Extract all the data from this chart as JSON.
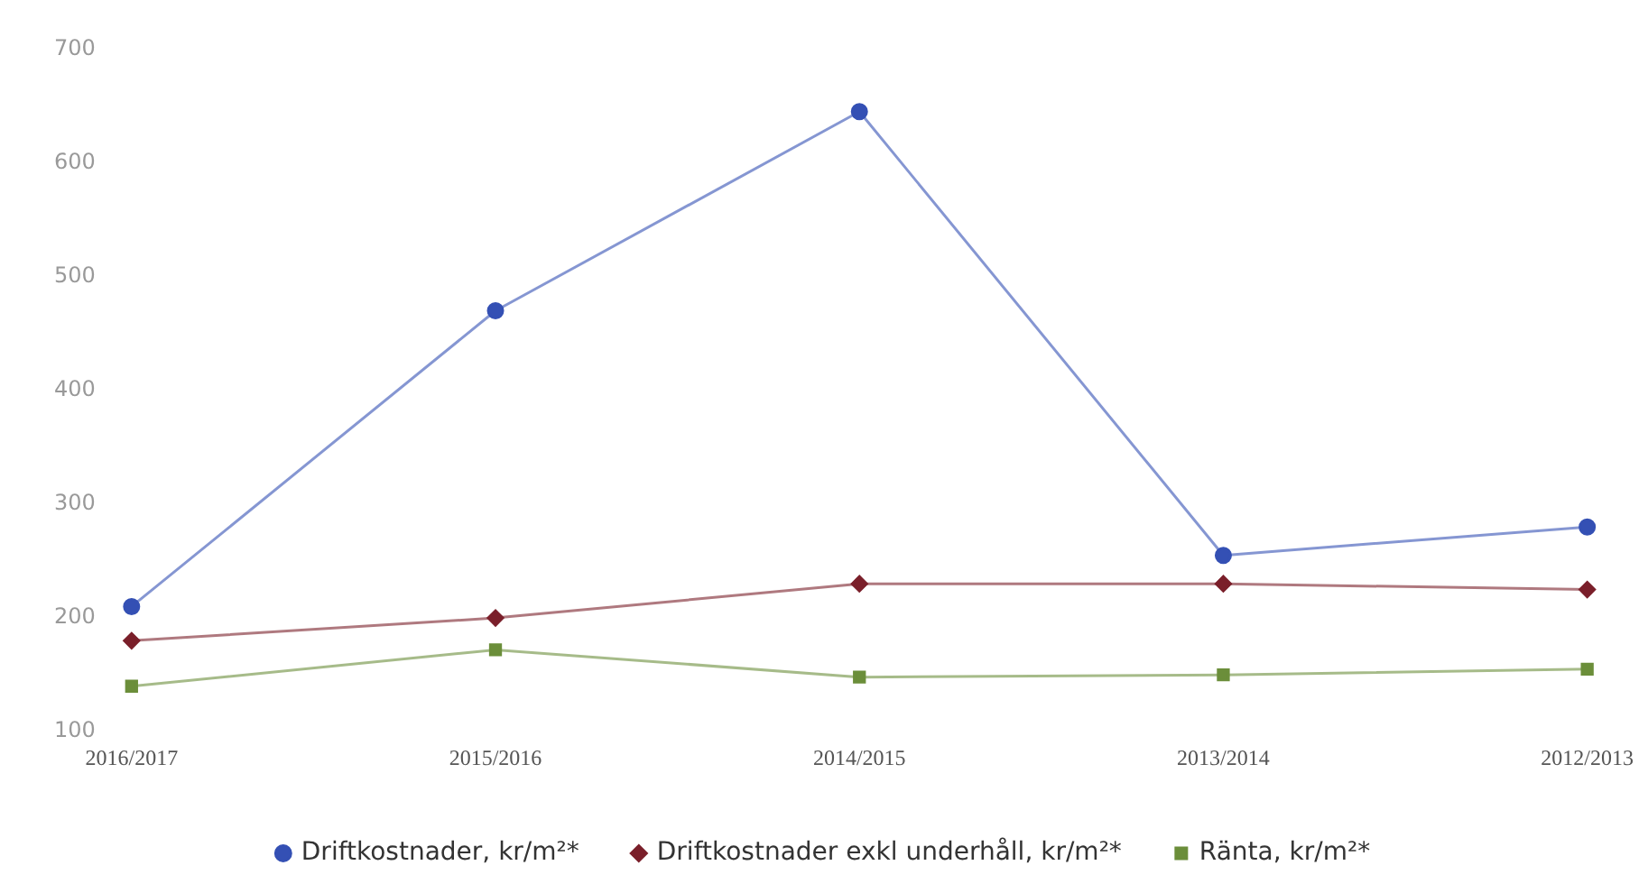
{
  "chart_data": {
    "type": "line",
    "categories": [
      "2016/2017",
      "2015/2016",
      "2014/2015",
      "2013/2014",
      "2012/2013"
    ],
    "ylim": [
      100,
      700
    ],
    "yticks": [
      100,
      200,
      300,
      400,
      500,
      600,
      700
    ],
    "grid": false,
    "legend": "bottom",
    "line_style": "solid",
    "series": [
      {
        "name": "Driftkostnader, kr/m²*",
        "color": "#3450b4",
        "marker": "circle",
        "values": [
          210,
          470,
          645,
          255,
          280
        ]
      },
      {
        "name": "Driftkostnader exkl underhåll, kr/m²*",
        "color": "#7a1f2a",
        "marker": "diamond",
        "values": [
          180,
          200,
          230,
          230,
          225
        ]
      },
      {
        "name": "Ränta, kr/m²*",
        "color": "#6b8e3a",
        "marker": "square",
        "values": [
          140,
          172,
          148,
          150,
          155
        ]
      }
    ]
  }
}
